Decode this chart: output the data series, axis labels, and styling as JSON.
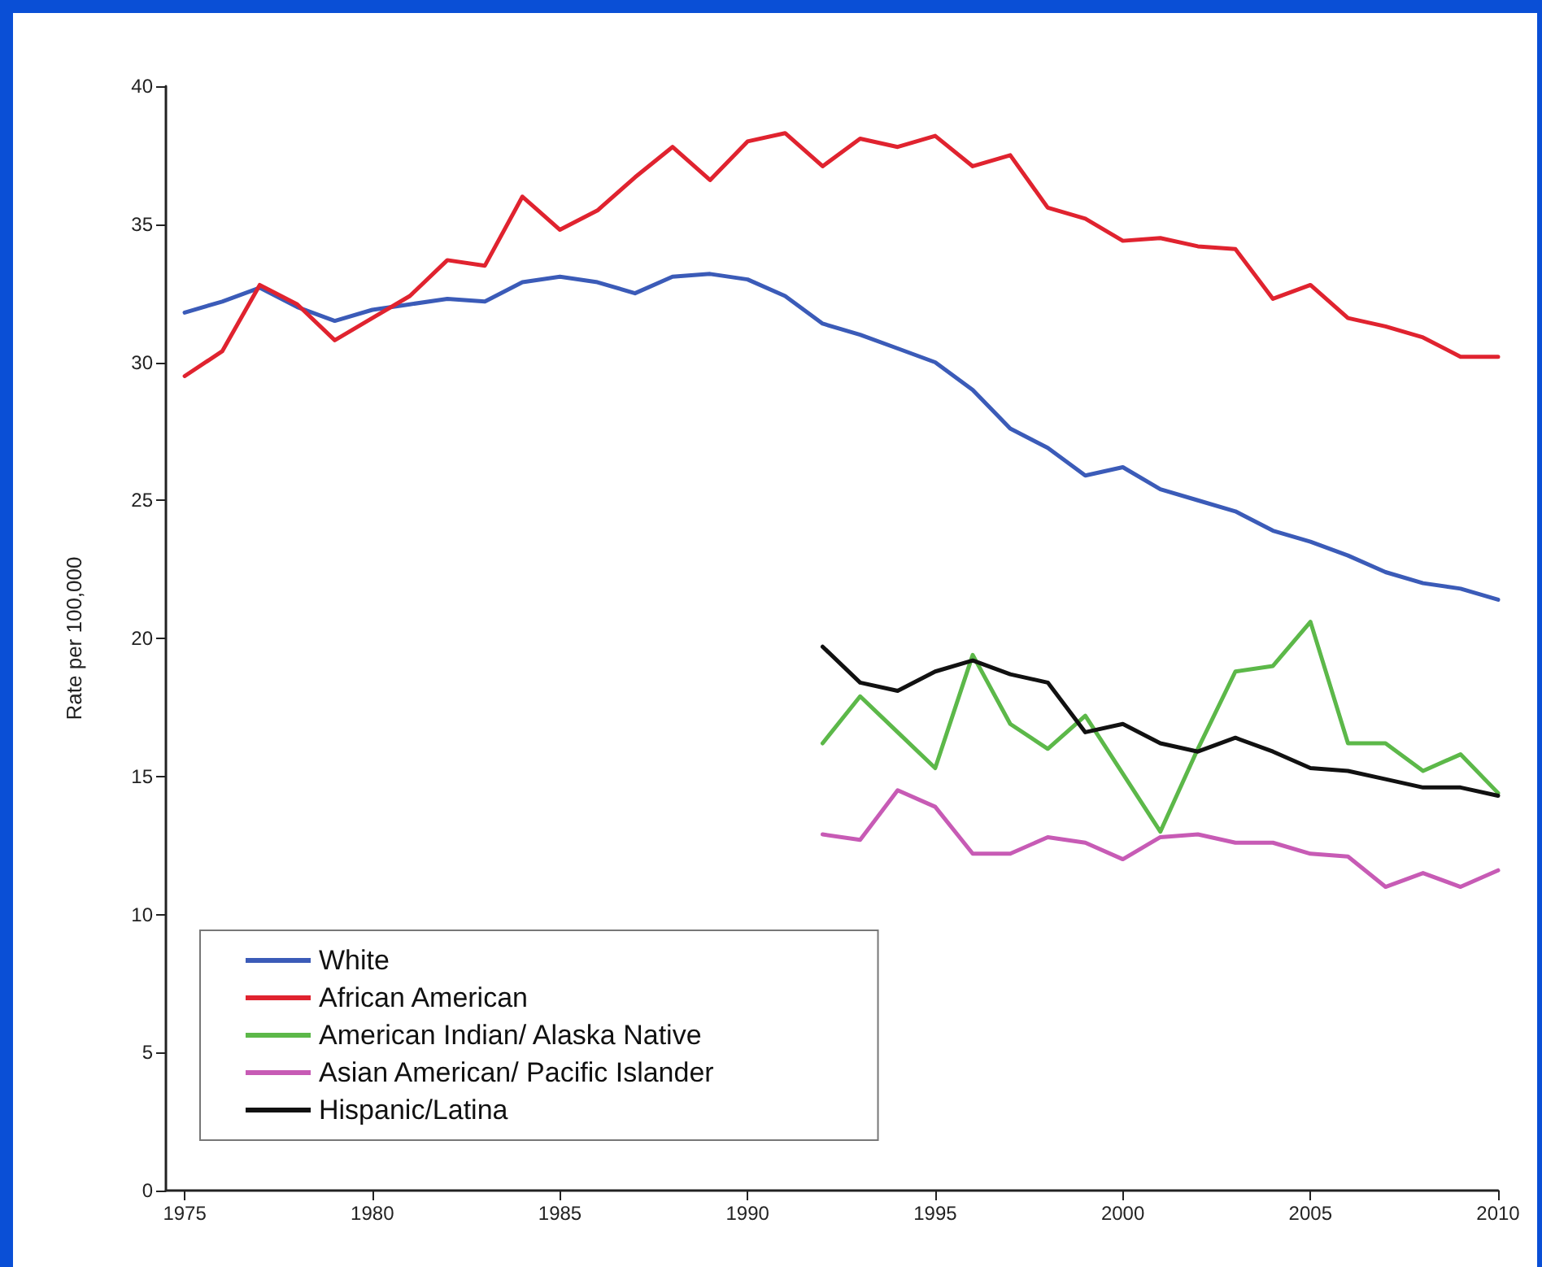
{
  "chart_data": {
    "type": "line",
    "ylabel": "Rate per 100,000",
    "x": [
      1975,
      1976,
      1977,
      1978,
      1979,
      1980,
      1981,
      1982,
      1983,
      1984,
      1985,
      1986,
      1987,
      1988,
      1989,
      1990,
      1991,
      1992,
      1993,
      1994,
      1995,
      1996,
      1997,
      1998,
      1999,
      2000,
      2001,
      2002,
      2003,
      2004,
      2005,
      2006,
      2007,
      2008,
      2009,
      2010
    ],
    "series": [
      {
        "name": "White",
        "color": "#3b5bb8",
        "values": [
          31.8,
          32.2,
          32.7,
          32.0,
          31.5,
          31.9,
          32.1,
          32.3,
          32.2,
          32.9,
          33.1,
          32.9,
          32.5,
          33.1,
          33.2,
          33.0,
          32.4,
          31.4,
          31.0,
          30.5,
          30.0,
          29.0,
          27.6,
          26.9,
          25.9,
          26.2,
          25.4,
          25.0,
          24.6,
          23.9,
          23.5,
          23.0,
          22.4,
          22.0,
          21.8,
          21.4
        ]
      },
      {
        "name": "African American",
        "color": "#e0232f",
        "values": [
          29.5,
          30.4,
          32.8,
          32.1,
          30.8,
          31.6,
          32.4,
          33.7,
          33.5,
          36.0,
          34.8,
          35.5,
          36.7,
          37.8,
          36.6,
          38.0,
          38.3,
          37.1,
          38.1,
          37.8,
          38.2,
          37.1,
          37.5,
          35.6,
          35.2,
          34.4,
          34.5,
          34.2,
          34.1,
          32.3,
          32.8,
          31.6,
          31.3,
          30.9,
          30.2,
          30.2
        ]
      },
      {
        "name": "American Indian/ Alaska Native",
        "color": "#5cb849",
        "values": [
          null,
          null,
          null,
          null,
          null,
          null,
          null,
          null,
          null,
          null,
          null,
          null,
          null,
          null,
          null,
          null,
          null,
          16.2,
          17.9,
          16.6,
          15.3,
          19.4,
          16.9,
          16.0,
          17.2,
          15.1,
          13.0,
          16.0,
          18.8,
          19.0,
          20.6,
          16.2,
          16.2,
          15.2,
          15.8,
          14.4
        ]
      },
      {
        "name": "Asian American/ Pacific Islander",
        "color": "#c75bb5",
        "values": [
          null,
          null,
          null,
          null,
          null,
          null,
          null,
          null,
          null,
          null,
          null,
          null,
          null,
          null,
          null,
          null,
          null,
          12.9,
          12.7,
          14.5,
          13.9,
          12.2,
          12.2,
          12.8,
          12.6,
          12.0,
          12.8,
          12.9,
          12.6,
          12.6,
          12.2,
          12.1,
          11.0,
          11.5,
          11.0,
          11.6
        ]
      },
      {
        "name": "Hispanic/Latina",
        "color": "#111111",
        "values": [
          null,
          null,
          null,
          null,
          null,
          null,
          null,
          null,
          null,
          null,
          null,
          null,
          null,
          null,
          null,
          null,
          null,
          19.7,
          18.4,
          18.1,
          18.8,
          19.2,
          18.7,
          18.4,
          16.6,
          16.9,
          16.2,
          15.9,
          16.4,
          15.9,
          15.3,
          15.2,
          14.9,
          14.6,
          14.6,
          14.3
        ]
      }
    ],
    "xlim": [
      1974.5,
      2010
    ],
    "xticks": [
      1975,
      1980,
      1985,
      1990,
      1995,
      2000,
      2005,
      2010
    ],
    "ylim": [
      0,
      40
    ],
    "yticks": [
      0,
      5,
      10,
      15,
      20,
      25,
      30,
      35,
      40
    ],
    "grid": false,
    "legend": "bottom left",
    "marker": "none",
    "line_style": "solid"
  }
}
